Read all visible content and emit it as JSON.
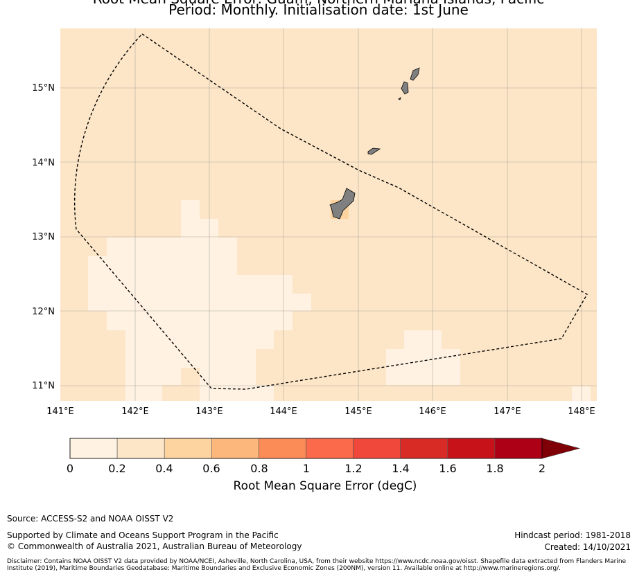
{
  "title": {
    "line1": "Root Mean Square Error: Guam, Northern Mariana Islands, Pacific",
    "line2": "Period: Monthly. Initialisation date: 1st June"
  },
  "map": {
    "lon_ticks": [
      "141°E",
      "142°E",
      "143°E",
      "144°E",
      "145°E",
      "146°E",
      "147°E",
      "148°E"
    ],
    "lat_ticks": [
      "15°N",
      "14°N",
      "13°N",
      "12°N",
      "11°N"
    ],
    "extent": {
      "lon": [
        141.0,
        148.2
      ],
      "lat": [
        10.8,
        15.8
      ]
    },
    "background_color": "#fde6c7",
    "grid": true
  },
  "colorbar": {
    "label": "Root Mean Square Error (degC)",
    "ticks": [
      "0",
      "0.2",
      "0.4",
      "0.6",
      "0.8",
      "1",
      "1.2",
      "1.4",
      "1.6",
      "1.8",
      "2"
    ],
    "colors": [
      "#fff2e2",
      "#fde6c7",
      "#fdd4a0",
      "#fcb77d",
      "#fc8c57",
      "#fb6a4a",
      "#f0493c",
      "#d92b26",
      "#c81219",
      "#ad0016"
    ],
    "extend_color": "#800008"
  },
  "footer": {
    "source": "Source: ACCESS-S2 and NOAA OISST V2",
    "supported": "Supported by Climate and Oceans Support Program in the Pacific",
    "copyright": "© Commonwealth of Australia 2021, Australian Bureau of Meteorology",
    "hindcast": "Hindcast period: 1981-2018",
    "created": "Created: 14/10/2021",
    "disclaimer": "Disclaimer: Contains NOAA OISST V2 data provided by NOAA/NCEI, Asheville, North Carolina, USA, from their website https://www.ncdc.noaa.gov/oisst. Shapefile data extracted from Flanders Marine Institute (2019), Maritime Boundaries Geodatabase: Maritime Boundaries and Exclusive Economic Zones (200NM), version 11. Available online at http://www.marineregions.org/."
  }
}
